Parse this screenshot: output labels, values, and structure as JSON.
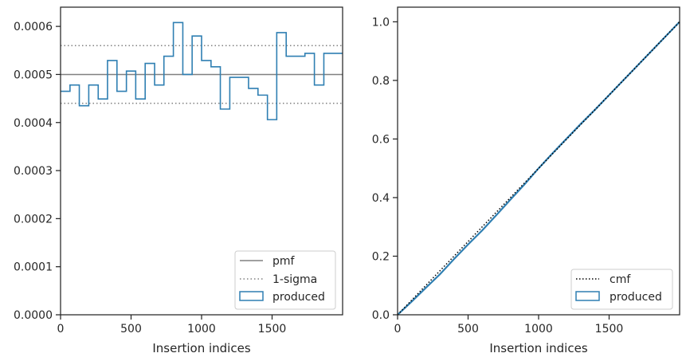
{
  "chart_data": [
    {
      "type": "line",
      "xlabel": "Insertion indices",
      "ylabel": "",
      "xlim": [
        0,
        2000
      ],
      "ylim": [
        0,
        0.00064
      ],
      "xticks": [
        0,
        500,
        1000,
        1500
      ],
      "xtick_labels": [
        "0",
        "500",
        "1000",
        "1500"
      ],
      "yticks": [
        0,
        0.0001,
        0.0002,
        0.0003,
        0.0004,
        0.0005,
        0.0006
      ],
      "ytick_labels": [
        "0.0000",
        "0.0001",
        "0.0002",
        "0.0003",
        "0.0004",
        "0.0005",
        "0.0006"
      ],
      "legend_position": "lower-right",
      "legend": [
        "pmf",
        "1-sigma",
        "produced"
      ],
      "pmf_value": 0.0005,
      "sigma_lower": 0.00044,
      "sigma_upper": 0.00056,
      "colors": {
        "pmf": "#808080",
        "sigma": "#808080",
        "produced": "#2f7fb2"
      },
      "produced_bins": {
        "edges": [
          0,
          67,
          133,
          200,
          267,
          333,
          400,
          467,
          533,
          600,
          667,
          733,
          800,
          867,
          933,
          1000,
          1067,
          1133,
          1200,
          1267,
          1333,
          1400,
          1467,
          1533,
          1600,
          1667,
          1733,
          1800,
          1867,
          1933,
          2000
        ],
        "values": [
          0.000465,
          0.000478,
          0.000435,
          0.000478,
          0.000449,
          0.000529,
          0.000465,
          0.000507,
          0.000449,
          0.000523,
          0.000478,
          0.000538,
          0.000608,
          0.0005,
          0.00058,
          0.000529,
          0.000516,
          0.000428,
          0.000494,
          0.000494,
          0.000471,
          0.000457,
          0.000406,
          0.000587,
          0.000538,
          0.000538,
          0.000544,
          0.000478,
          0.000544,
          0.000544
        ]
      }
    },
    {
      "type": "line",
      "xlabel": "Insertion indices",
      "ylabel": "",
      "xlim": [
        0,
        2000
      ],
      "ylim": [
        0,
        1.05
      ],
      "xticks": [
        0,
        500,
        1000,
        1500
      ],
      "xtick_labels": [
        "0",
        "500",
        "1000",
        "1500"
      ],
      "yticks": [
        0,
        0.2,
        0.4,
        0.6,
        0.8,
        1.0
      ],
      "ytick_labels": [
        "0.0",
        "0.2",
        "0.4",
        "0.6",
        "0.8",
        "1.0"
      ],
      "legend_position": "lower-right",
      "legend": [
        "cmf",
        "produced"
      ],
      "colors": {
        "cmf": "#000000",
        "produced": "#2f7fb2"
      },
      "cmf": {
        "x": [
          0,
          2000
        ],
        "y": [
          0,
          1.0
        ]
      },
      "produced_cumulative": {
        "x": [
          0,
          100,
          200,
          300,
          400,
          500,
          600,
          700,
          800,
          900,
          1000,
          1100,
          1200,
          1300,
          1400,
          1500,
          1600,
          1700,
          1800,
          1900,
          2000
        ],
        "y": [
          0,
          0.045,
          0.092,
          0.138,
          0.19,
          0.24,
          0.288,
          0.34,
          0.393,
          0.445,
          0.5,
          0.552,
          0.602,
          0.652,
          0.7,
          0.75,
          0.8,
          0.85,
          0.9,
          0.95,
          1.0
        ]
      }
    }
  ]
}
